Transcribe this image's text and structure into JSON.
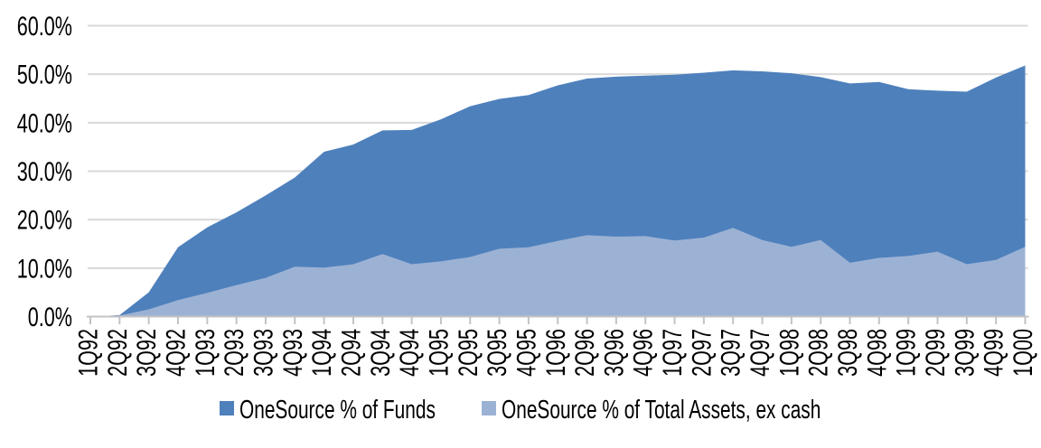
{
  "chart_data": {
    "type": "area",
    "title": "",
    "x_labels": [
      "1Q92",
      "2Q92",
      "3Q92",
      "4Q92",
      "1Q93",
      "2Q93",
      "3Q93",
      "4Q93",
      "1Q94",
      "2Q94",
      "3Q94",
      "4Q94",
      "1Q95",
      "2Q95",
      "3Q95",
      "4Q95",
      "1Q96",
      "2Q96",
      "3Q96",
      "4Q96",
      "1Q97",
      "2Q97",
      "3Q97",
      "4Q97",
      "1Q98",
      "2Q98",
      "3Q98",
      "4Q98",
      "1Q99",
      "2Q99",
      "3Q99",
      "4Q99",
      "1Q00"
    ],
    "y_tick_labels": [
      "60.0%",
      "50.0%",
      "40.0%",
      "30.0%",
      "20.0%",
      "10.0%",
      "0.0%"
    ],
    "ylim": [
      0,
      60
    ],
    "y_tick_step": 10,
    "grid": "horizontal-only",
    "legend_position": "bottom",
    "series": [
      {
        "name": "OneSource % of Funds",
        "color": "#4E80BC",
        "values": [
          0.0,
          0.3,
          5.0,
          14.3,
          18.4,
          21.5,
          25.0,
          28.7,
          34.0,
          35.5,
          38.4,
          38.5,
          40.7,
          43.4,
          44.9,
          45.7,
          47.7,
          49.1,
          49.5,
          49.7,
          49.9,
          50.3,
          50.8,
          50.6,
          50.2,
          49.4,
          48.1,
          48.4,
          46.9,
          46.6,
          46.4,
          49.3,
          51.8
        ]
      },
      {
        "name": "OneSource % of Total Assets, ex cash",
        "color": "#9CB2D4",
        "values": [
          0.0,
          0.2,
          1.5,
          3.4,
          4.9,
          6.5,
          8.0,
          10.3,
          10.1,
          10.8,
          12.9,
          10.8,
          11.4,
          12.3,
          14.0,
          14.3,
          15.6,
          16.8,
          16.5,
          16.6,
          15.7,
          16.3,
          18.3,
          15.8,
          14.4,
          15.8,
          11.1,
          12.1,
          12.5,
          13.4,
          10.8,
          11.7,
          14.4
        ]
      }
    ]
  },
  "colors": {
    "background": "#FFFFFF",
    "gridline": "#D9D9D9",
    "axis": "#C3C3C3",
    "text": "#000000"
  }
}
